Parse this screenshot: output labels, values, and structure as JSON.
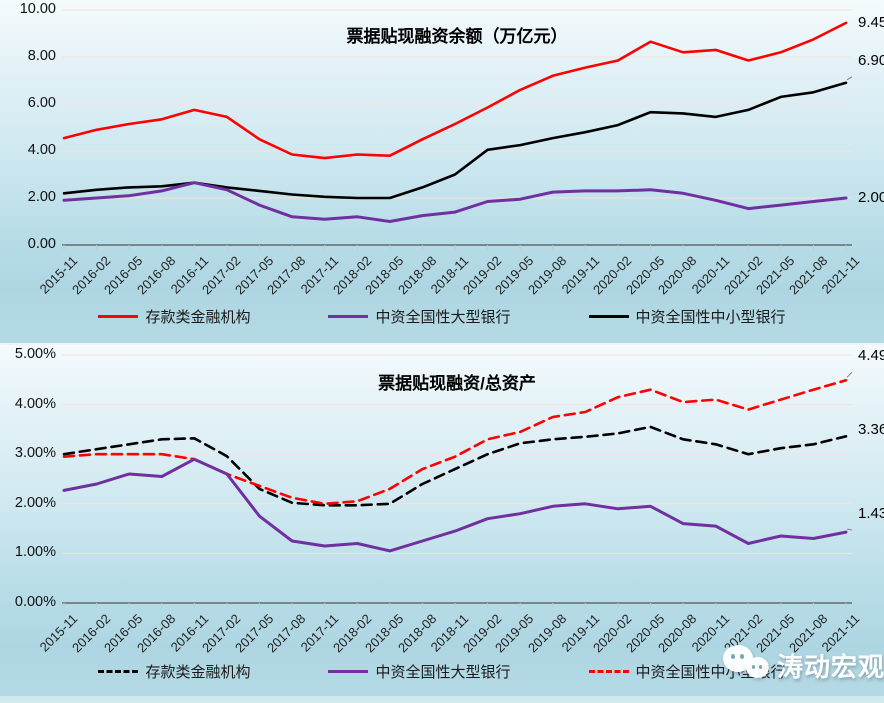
{
  "watermark": {
    "text": "涛动宏观",
    "icon": "chat-bubbles-icon"
  },
  "colors": {
    "series_red": "#ff0000",
    "series_purple": "#7030a0",
    "series_black": "#000000",
    "plot_bg_top": "#f4fbfd",
    "plot_bg_bottom": "#aed6e2",
    "gridline": "#f4e3dd",
    "axis_line": "#555555"
  },
  "chart_data": [
    {
      "type": "line",
      "title": "票据贴现融资余额（万亿元）",
      "ylim": [
        0,
        10
      ],
      "y_ticks": [
        "10.00",
        "8.00",
        "6.00",
        "4.00",
        "2.00",
        "0.00"
      ],
      "legend_position": "bottom",
      "grid": true,
      "categories": [
        "2015-11",
        "2016-02",
        "2016-05",
        "2016-08",
        "2016-11",
        "2017-02",
        "2017-05",
        "2017-08",
        "2017-11",
        "2018-02",
        "2018-05",
        "2018-08",
        "2018-11",
        "2019-02",
        "2019-05",
        "2019-08",
        "2019-11",
        "2020-02",
        "2020-05",
        "2020-08",
        "2020-11",
        "2021-02",
        "2021-05",
        "2021-08",
        "2021-11"
      ],
      "series": [
        {
          "id": "deposit-financial-institutions",
          "name": "存款类金融机构",
          "color": "#ff0000",
          "style": "solid",
          "end_label": "9.45",
          "values": [
            4.55,
            4.9,
            5.15,
            5.35,
            5.75,
            5.45,
            4.5,
            3.85,
            3.7,
            3.85,
            3.8,
            4.5,
            5.15,
            5.85,
            6.6,
            7.2,
            7.55,
            7.85,
            8.65,
            8.2,
            8.3,
            7.85,
            8.2,
            8.75,
            9.45
          ]
        },
        {
          "id": "chinese-large-national-banks",
          "name": "中资全国性大型银行",
          "color": "#7030a0",
          "style": "solid",
          "end_label": "2.00",
          "values": [
            1.9,
            2.0,
            2.1,
            2.3,
            2.65,
            2.35,
            1.7,
            1.2,
            1.1,
            1.2,
            1.0,
            1.25,
            1.4,
            1.85,
            1.95,
            2.25,
            2.3,
            2.3,
            2.35,
            2.2,
            1.9,
            1.55,
            1.7,
            1.85,
            2.0
          ]
        },
        {
          "id": "chinese-small-medium-national-banks",
          "name": "中资全国性中小型银行",
          "color": "#000000",
          "style": "solid",
          "end_label": "6.90",
          "values": [
            2.2,
            2.35,
            2.45,
            2.5,
            2.65,
            2.45,
            2.3,
            2.15,
            2.05,
            2.0,
            2.0,
            2.45,
            3.0,
            4.05,
            4.25,
            4.55,
            4.8,
            5.1,
            5.65,
            5.6,
            5.45,
            5.75,
            6.3,
            6.5,
            6.9
          ]
        }
      ]
    },
    {
      "type": "line",
      "title": "票据贴现融资/总资产",
      "ylim": [
        0,
        5
      ],
      "y_ticks": [
        "5.00%",
        "4.00%",
        "3.00%",
        "2.00%",
        "1.00%",
        "0.00%"
      ],
      "legend_position": "bottom",
      "grid": true,
      "categories": [
        "2015-11",
        "2016-02",
        "2016-05",
        "2016-08",
        "2016-11",
        "2017-02",
        "2017-05",
        "2017-08",
        "2017-11",
        "2018-02",
        "2018-05",
        "2018-08",
        "2018-11",
        "2019-02",
        "2019-05",
        "2019-08",
        "2019-11",
        "2020-02",
        "2020-05",
        "2020-08",
        "2020-11",
        "2021-02",
        "2021-05",
        "2021-08",
        "2021-11"
      ],
      "series": [
        {
          "id": "deposit-financial-institutions",
          "name": "存款类金融机构",
          "color": "#000000",
          "style": "dashed",
          "end_label": "3.36%",
          "values": [
            3.0,
            3.1,
            3.2,
            3.3,
            3.32,
            2.96,
            2.3,
            2.02,
            1.97,
            1.97,
            2.0,
            2.4,
            2.7,
            3.0,
            3.22,
            3.3,
            3.35,
            3.42,
            3.55,
            3.3,
            3.2,
            3.0,
            3.12,
            3.2,
            3.36
          ]
        },
        {
          "id": "chinese-large-national-banks",
          "name": "中资全国性大型银行",
          "color": "#7030a0",
          "style": "solid",
          "end_label": "1.43%",
          "values": [
            2.27,
            2.4,
            2.6,
            2.55,
            2.9,
            2.6,
            1.75,
            1.25,
            1.15,
            1.2,
            1.05,
            1.25,
            1.45,
            1.7,
            1.8,
            1.95,
            2.0,
            1.9,
            1.95,
            1.6,
            1.55,
            1.2,
            1.35,
            1.3,
            1.43
          ]
        },
        {
          "id": "chinese-small-medium-national-banks",
          "name": "中资全国性中小型银行",
          "color": "#ff0000",
          "style": "dashed",
          "end_label": "4.49%",
          "values": [
            2.95,
            3.0,
            3.0,
            3.0,
            2.9,
            2.6,
            2.36,
            2.12,
            2.0,
            2.05,
            2.3,
            2.7,
            2.95,
            3.3,
            3.45,
            3.75,
            3.85,
            4.15,
            4.3,
            4.05,
            4.1,
            3.9,
            4.1,
            4.3,
            4.49
          ]
        }
      ]
    }
  ]
}
